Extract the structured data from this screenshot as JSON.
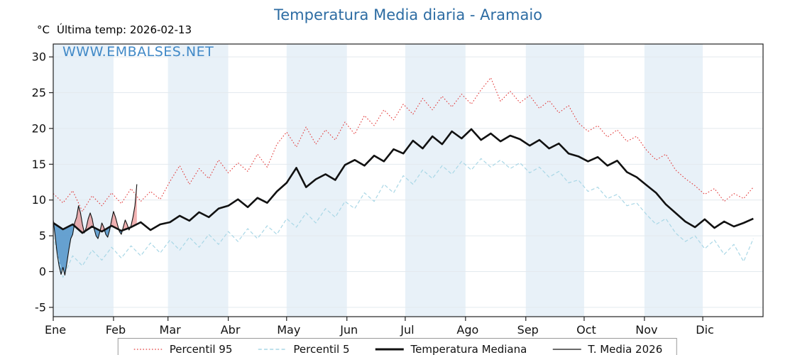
{
  "chart_data": {
    "type": "line",
    "title": "Temperatura Media diaria - Aramaio",
    "subtitle": "Última temp: 2026-02-13",
    "y_unit_label": "°C",
    "watermark": "WWW.EMBALSES.NET",
    "ylim": [
      -6.3,
      31.8
    ],
    "yticks": [
      -5,
      0,
      5,
      10,
      15,
      20,
      25,
      30
    ],
    "band_color": "#e8f1f8",
    "grid_color": "#e3e9ee",
    "title_color": "#2d6ca3",
    "months": [
      {
        "label": "Ene",
        "start_day": 1
      },
      {
        "label": "Feb",
        "start_day": 32
      },
      {
        "label": "Mar",
        "start_day": 60
      },
      {
        "label": "Abr",
        "start_day": 91
      },
      {
        "label": "May",
        "start_day": 121
      },
      {
        "label": "Jun",
        "start_day": 152
      },
      {
        "label": "Jul",
        "start_day": 182
      },
      {
        "label": "Ago",
        "start_day": 213
      },
      {
        "label": "Sep",
        "start_day": 244
      },
      {
        "label": "Oct",
        "start_day": 274
      },
      {
        "label": "Nov",
        "start_day": 305
      },
      {
        "label": "Dic",
        "start_day": 335
      }
    ],
    "shaded_months": [
      "Ene",
      "Mar",
      "May",
      "Jul",
      "Sep",
      "Nov"
    ],
    "sample_days": [
      1,
      6,
      11,
      16,
      21,
      26,
      31,
      36,
      41,
      46,
      51,
      56,
      61,
      66,
      71,
      76,
      81,
      86,
      91,
      96,
      101,
      106,
      111,
      116,
      121,
      126,
      131,
      136,
      141,
      146,
      151,
      156,
      161,
      166,
      171,
      176,
      181,
      186,
      191,
      196,
      201,
      206,
      211,
      216,
      221,
      226,
      231,
      236,
      241,
      246,
      251,
      256,
      261,
      266,
      271,
      276,
      281,
      286,
      291,
      296,
      301,
      306,
      311,
      316,
      321,
      326,
      331,
      336,
      341,
      346,
      351,
      356,
      361
    ],
    "series": [
      {
        "name": "Percentil 95",
        "color": "#e23b3b",
        "style": "dotted",
        "width": 1.1,
        "values": [
          10.9,
          9.6,
          11.3,
          8.4,
          10.6,
          9.2,
          11.0,
          9.5,
          11.6,
          9.8,
          11.2,
          10.1,
          12.6,
          14.8,
          12.2,
          14.4,
          13.0,
          15.6,
          13.8,
          15.2,
          14.0,
          16.4,
          14.6,
          17.8,
          19.5,
          17.4,
          20.2,
          17.8,
          19.8,
          18.4,
          20.9,
          19.2,
          21.8,
          20.4,
          22.6,
          21.2,
          23.4,
          22.0,
          24.2,
          22.6,
          24.5,
          23.0,
          24.8,
          23.4,
          25.4,
          27.1,
          23.8,
          25.2,
          23.6,
          24.6,
          22.8,
          23.9,
          22.2,
          23.2,
          20.8,
          19.6,
          20.4,
          18.8,
          19.8,
          18.2,
          18.9,
          17.0,
          15.6,
          16.4,
          14.2,
          13.0,
          12.0,
          10.8,
          11.6,
          9.8,
          10.9,
          10.2,
          11.8
        ]
      },
      {
        "name": "Percentil 5",
        "color": "#a9d7e6",
        "style": "dashed",
        "width": 1.2,
        "values": [
          5.0,
          -0.8,
          2.2,
          0.8,
          3.0,
          1.6,
          3.4,
          1.9,
          3.6,
          2.2,
          4.0,
          2.6,
          4.4,
          3.0,
          4.8,
          3.4,
          5.2,
          3.8,
          5.6,
          4.2,
          6.0,
          4.6,
          6.4,
          5.2,
          7.4,
          6.2,
          8.2,
          6.8,
          8.8,
          7.6,
          9.8,
          8.8,
          11.0,
          9.8,
          12.2,
          11.0,
          13.4,
          12.2,
          14.2,
          13.0,
          14.8,
          13.6,
          15.4,
          14.2,
          15.8,
          14.6,
          15.6,
          14.4,
          15.2,
          13.8,
          14.6,
          13.2,
          14.0,
          12.4,
          12.8,
          11.2,
          11.8,
          10.2,
          10.8,
          9.2,
          9.6,
          8.0,
          6.6,
          7.4,
          5.4,
          4.2,
          5.0,
          3.2,
          4.4,
          2.4,
          3.8,
          1.4,
          4.6
        ]
      },
      {
        "name": "Temperatura Mediana",
        "color": "#111111",
        "style": "solid",
        "width": 2.6,
        "values": [
          6.8,
          5.9,
          6.6,
          5.4,
          6.3,
          5.6,
          6.4,
          5.7,
          6.2,
          6.9,
          5.8,
          6.6,
          6.9,
          7.8,
          7.1,
          8.3,
          7.6,
          8.8,
          9.2,
          10.1,
          9.0,
          10.3,
          9.6,
          11.2,
          12.4,
          14.5,
          11.8,
          12.9,
          13.6,
          12.8,
          14.9,
          15.6,
          14.8,
          16.2,
          15.4,
          17.1,
          16.5,
          18.3,
          17.2,
          18.9,
          17.8,
          19.6,
          18.6,
          19.9,
          18.4,
          19.3,
          18.2,
          19.0,
          18.5,
          17.6,
          18.4,
          17.2,
          17.9,
          16.5,
          16.1,
          15.4,
          16.0,
          14.8,
          15.5,
          13.9,
          13.2,
          12.1,
          11.0,
          9.4,
          8.2,
          7.0,
          6.2,
          7.3,
          6.1,
          7.0,
          6.3,
          6.8,
          7.4
        ]
      }
    ],
    "t2026": {
      "name": "T. Media 2026",
      "color": "#111111",
      "width": 1.1,
      "fill_above_color": "#e57373",
      "fill_below_color": "#4f93c9",
      "values": [
        7.2,
        5.0,
        2.5,
        0.8,
        -0.4,
        0.6,
        -0.5,
        1.2,
        3.0,
        4.6,
        5.2,
        6.8,
        7.6,
        9.2,
        8.2,
        6.6,
        5.4,
        6.2,
        7.4,
        8.2,
        7.4,
        6.0,
        5.0,
        4.6,
        5.6,
        6.8,
        6.2,
        5.2,
        4.8,
        5.8,
        7.2,
        8.4,
        7.6,
        6.6,
        5.6,
        5.2,
        6.2,
        7.2,
        6.6,
        5.8,
        6.4,
        7.6,
        9.2,
        12.2
      ]
    },
    "legend": [
      {
        "label": "Percentil 95"
      },
      {
        "label": "Percentil 5"
      },
      {
        "label": "Temperatura Mediana"
      },
      {
        "label": "T. Media 2026"
      }
    ]
  }
}
